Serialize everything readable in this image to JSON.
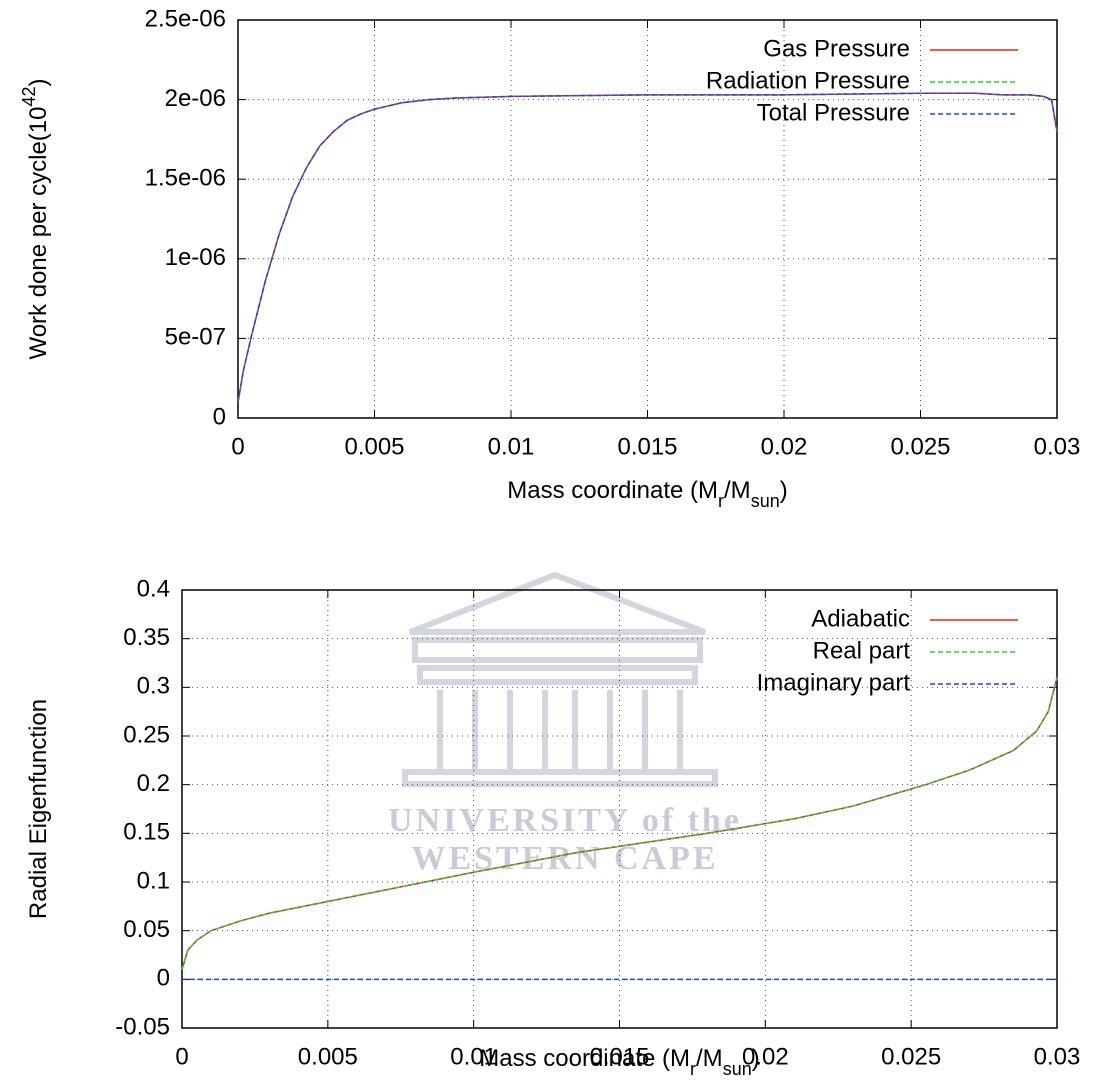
{
  "chart_data": [
    {
      "type": "line",
      "xlabel": [
        {
          "text": "Mass coordinate (M"
        },
        {
          "text": "r",
          "shift": "sub"
        },
        {
          "text": "/M"
        },
        {
          "text": "sun",
          "shift": "sub"
        },
        {
          "text": ")"
        }
      ],
      "ylabel": [
        {
          "text": "Work done per cycle(10"
        },
        {
          "text": "42",
          "shift": "super"
        },
        {
          "text": ")"
        }
      ],
      "x": [
        0,
        0.0002,
        0.0005,
        0.001,
        0.0015,
        0.002,
        0.0025,
        0.003,
        0.0035,
        0.004,
        0.0045,
        0.005,
        0.006,
        0.007,
        0.008,
        0.01,
        0.015,
        0.02,
        0.025,
        0.027,
        0.028,
        0.029,
        0.0295,
        0.0298,
        0.03
      ],
      "series": [
        {
          "name": "Gas Pressure",
          "color": "#e8231b",
          "dashed": false,
          "values": [
            1e-07,
            3e-07,
            5.2e-07,
            8.6e-07,
            1.15e-06,
            1.39e-06,
            1.57e-06,
            1.71e-06,
            1.8e-06,
            1.87e-06,
            1.91e-06,
            1.94e-06,
            1.98e-06,
            2e-06,
            2.01e-06,
            2.02e-06,
            2.03e-06,
            2.03e-06,
            2.04e-06,
            2.04e-06,
            2.03e-06,
            2.03e-06,
            2.02e-06,
            2e-06,
            1.8e-06
          ]
        },
        {
          "name": "Radiation Pressure",
          "color": "#2ecc40",
          "dashed": true,
          "values": [
            1e-07,
            3e-07,
            5.2e-07,
            8.6e-07,
            1.15e-06,
            1.39e-06,
            1.57e-06,
            1.71e-06,
            1.8e-06,
            1.87e-06,
            1.91e-06,
            1.94e-06,
            1.98e-06,
            2e-06,
            2.01e-06,
            2.02e-06,
            2.03e-06,
            2.03e-06,
            2.04e-06,
            2.04e-06,
            2.03e-06,
            2.03e-06,
            2.02e-06,
            2e-06,
            1.8e-06
          ]
        },
        {
          "name": "Total Pressure",
          "color": "#2244dd",
          "dashed": true,
          "values": [
            1e-07,
            3e-07,
            5.2e-07,
            8.6e-07,
            1.15e-06,
            1.39e-06,
            1.57e-06,
            1.71e-06,
            1.8e-06,
            1.87e-06,
            1.91e-06,
            1.94e-06,
            1.98e-06,
            2e-06,
            2.01e-06,
            2.02e-06,
            2.03e-06,
            2.03e-06,
            2.04e-06,
            2.04e-06,
            2.03e-06,
            2.03e-06,
            2.02e-06,
            2e-06,
            1.8e-06
          ]
        }
      ],
      "xlim": [
        0,
        0.03
      ],
      "xticks": [
        0,
        0.005,
        0.01,
        0.015,
        0.02,
        0.025,
        0.03
      ],
      "ylim": [
        0,
        2.5e-06
      ],
      "yticks": [
        0,
        {
          "value": 5e-07,
          "label": "5e-07"
        },
        {
          "value": 1e-06,
          "label": "1e-06"
        },
        {
          "value": 1.5e-06,
          "label": "1.5e-06"
        },
        {
          "value": 2e-06,
          "label": "2e-06"
        },
        {
          "value": 2.5e-06,
          "label": "2.5e-06"
        }
      ],
      "grid": true,
      "legend": "top-right"
    },
    {
      "type": "line",
      "xlabel": [
        {
          "text": "Mass coordinate (M"
        },
        {
          "text": "r",
          "shift": "sub"
        },
        {
          "text": "/M"
        },
        {
          "text": "sun",
          "shift": "sub"
        },
        {
          "text": ")"
        }
      ],
      "ylabel": [
        {
          "text": "Radial Eigenfunction"
        }
      ],
      "watermark": [
        "UNIVERSITY of the",
        "WESTERN CAPE"
      ],
      "x": [
        0,
        0.0002,
        0.0005,
        0.001,
        0.002,
        0.003,
        0.005,
        0.0075,
        0.01,
        0.0135,
        0.018,
        0.021,
        0.023,
        0.0255,
        0.027,
        0.0285,
        0.0293,
        0.0297,
        0.03
      ],
      "series": [
        {
          "name": "Adiabatic",
          "color": "#e8231b",
          "dashed": false,
          "values": [
            0.01,
            0.03,
            0.04,
            0.05,
            0.06,
            0.068,
            0.08,
            0.095,
            0.11,
            0.13,
            0.15,
            0.165,
            0.178,
            0.2,
            0.215,
            0.235,
            0.255,
            0.275,
            0.31
          ]
        },
        {
          "name": "Real part",
          "color": "#2ecc40",
          "dashed": true,
          "values": [
            0.01,
            0.03,
            0.04,
            0.05,
            0.06,
            0.068,
            0.08,
            0.095,
            0.11,
            0.13,
            0.15,
            0.165,
            0.178,
            0.2,
            0.215,
            0.235,
            0.255,
            0.275,
            0.31
          ]
        },
        {
          "name": "Imaginary part",
          "color": "#2244dd",
          "dashed": true,
          "values": [
            0,
            0,
            0,
            0,
            0,
            0,
            0,
            0,
            0,
            0,
            0,
            0,
            0,
            0,
            0,
            0,
            0,
            0,
            0
          ]
        }
      ],
      "xlim": [
        0,
        0.03
      ],
      "xticks": [
        0,
        0.005,
        0.01,
        0.015,
        0.02,
        0.025,
        0.03
      ],
      "ylim": [
        -0.05,
        0.4
      ],
      "yticks": [
        -0.05,
        0,
        0.05,
        0.1,
        0.15,
        0.2,
        0.25,
        0.3,
        0.35,
        0.4
      ],
      "grid": true,
      "legend": "top-right"
    }
  ]
}
